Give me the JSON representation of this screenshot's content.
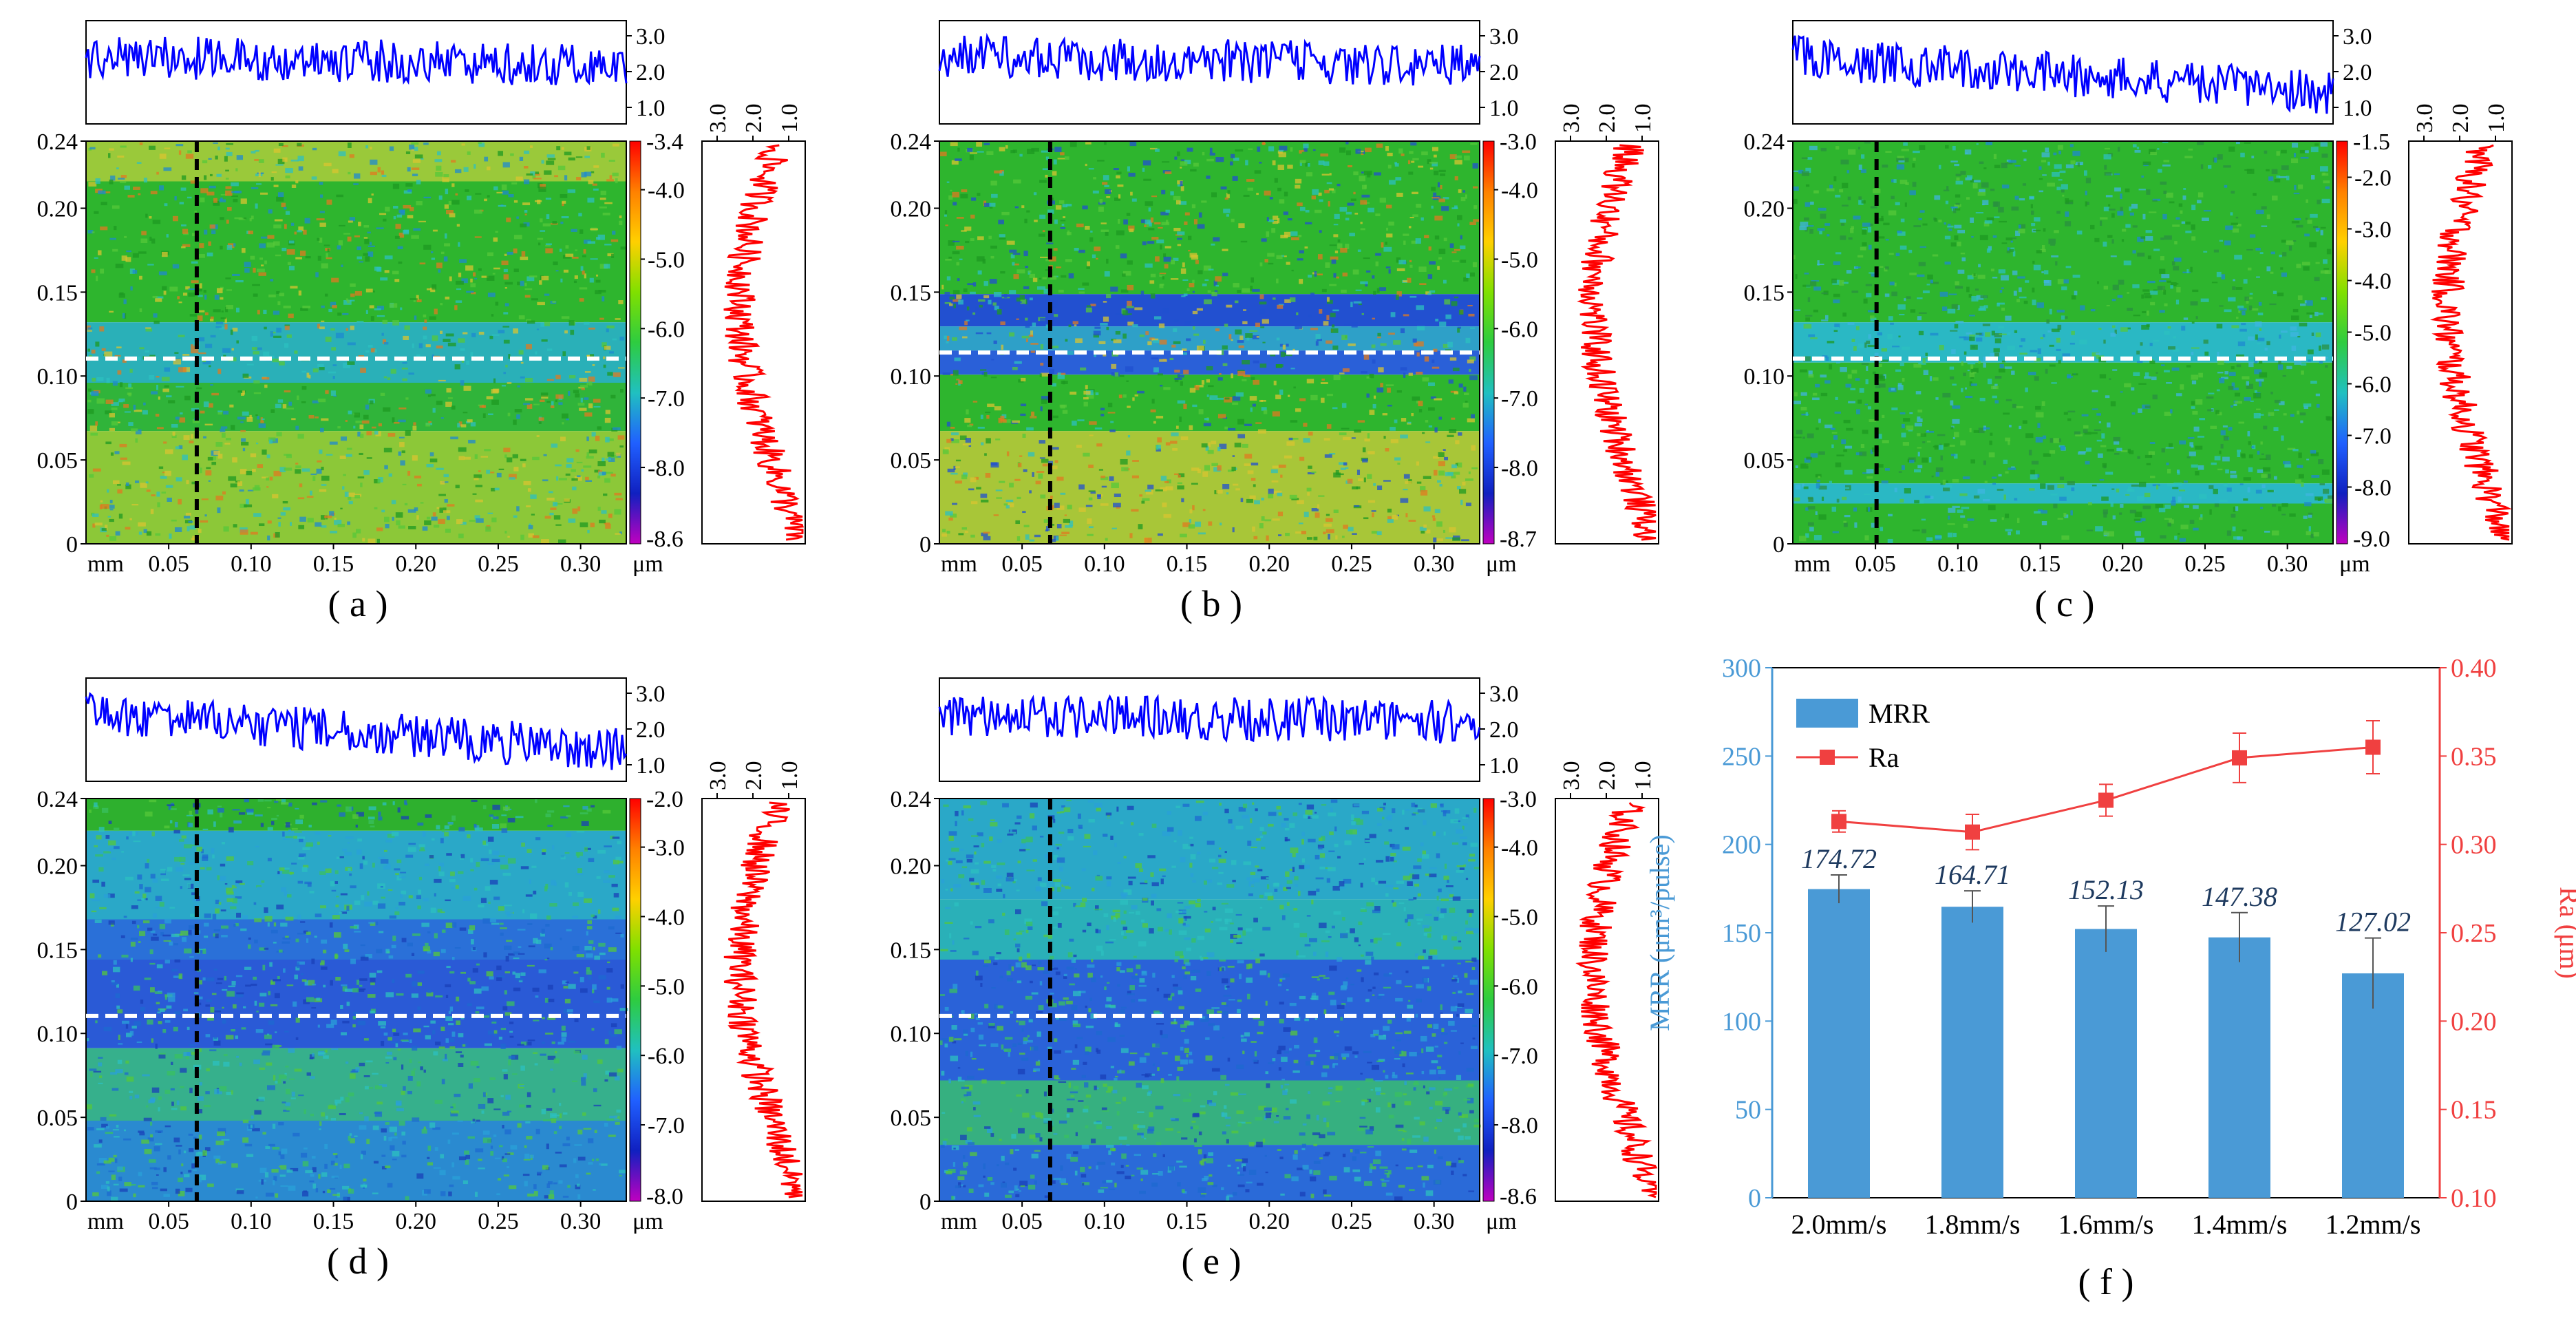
{
  "colors": {
    "top_profile": "#0000ff",
    "side_profile": "#ff0000",
    "bar": "#4a9ad6",
    "ra_line": "#f04040",
    "axis_left_f": "#4a9ad6",
    "axis_right_f": "#f04040",
    "value_label": "#1e3a5f",
    "map_green": "#2eb82e",
    "map_blue": "#2a62d8",
    "map_cyan": "#2cc1c8"
  },
  "colorbar_gradient": [
    "#ff0000",
    "#ff8000",
    "#ffd000",
    "#80e000",
    "#2ecc40",
    "#20c0c0",
    "#2060ff",
    "#1020c0",
    "#c000c0"
  ],
  "panels": [
    {
      "label": "( a )",
      "colorbar_top": "-3.4",
      "colorbar_ticks": [
        "-4.0",
        "-5.0",
        "-6.0",
        "-7.0",
        "-8.0"
      ],
      "colorbar_bottom": "-8.6",
      "map_style": "a"
    },
    {
      "label": "( b )",
      "colorbar_top": "-3.0",
      "colorbar_ticks": [
        "-4.0",
        "-5.0",
        "-6.0",
        "-7.0",
        "-8.0"
      ],
      "colorbar_bottom": "-8.7",
      "map_style": "b"
    },
    {
      "label": "( c )",
      "colorbar_top": "-1.5",
      "colorbar_ticks": [
        "-2.0",
        "-3.0",
        "-4.0",
        "-5.0",
        "-6.0",
        "-7.0",
        "-8.0"
      ],
      "colorbar_bottom": "-9.0",
      "map_style": "c"
    },
    {
      "label": "( d )",
      "colorbar_top": "-2.0",
      "colorbar_ticks": [
        "-3.0",
        "-4.0",
        "-5.0",
        "-6.0",
        "-7.0"
      ],
      "colorbar_bottom": "-8.0",
      "map_style": "d"
    },
    {
      "label": "( e )",
      "colorbar_top": "-3.0",
      "colorbar_ticks": [
        "-4.0",
        "-5.0",
        "-6.0",
        "-7.0",
        "-8.0"
      ],
      "colorbar_bottom": "-8.6",
      "map_style": "e"
    }
  ],
  "map_axes": {
    "y_ticks": [
      "0.24",
      "0.20",
      "0.15",
      "0.10",
      "0.05",
      "0"
    ],
    "x_ticks": [
      "0.05",
      "0.10",
      "0.15",
      "0.20",
      "0.25",
      "0.30"
    ],
    "x_unit": "mm",
    "z_unit": "μm",
    "profile_ticks": [
      "3.0",
      "2.0",
      "1.0"
    ]
  },
  "chart_data": {
    "type": "bar",
    "label": "( f )",
    "categories": [
      "2.0mm/s",
      "1.8mm/s",
      "1.6mm/s",
      "1.4mm/s",
      "1.2mm/s"
    ],
    "series": [
      {
        "name": "MRR",
        "kind": "bar",
        "axis": "left",
        "values": [
          174.72,
          164.71,
          152.13,
          147.38,
          127.02
        ],
        "errors": [
          8,
          9,
          13,
          14,
          20
        ],
        "value_labels": [
          "174.72",
          "164.71",
          "152.13",
          "147.38",
          "127.02"
        ]
      },
      {
        "name": "Ra",
        "kind": "line",
        "axis": "right",
        "values": [
          0.313,
          0.307,
          0.325,
          0.349,
          0.355
        ],
        "errors": [
          0.006,
          0.01,
          0.009,
          0.014,
          0.015
        ]
      }
    ],
    "ylabel_left": "MRR (μm³/pulse)",
    "ylabel_right": "Ra (μm)",
    "ylim_left": [
      0,
      300
    ],
    "yticks_left": [
      "0",
      "50",
      "100",
      "150",
      "200",
      "250",
      "300"
    ],
    "ylim_right": [
      0.1,
      0.4
    ],
    "yticks_right": [
      "0.10",
      "0.15",
      "0.20",
      "0.25",
      "0.30",
      "0.35",
      "0.40"
    ],
    "legend": {
      "placement": "top-left",
      "items": [
        "MRR",
        "Ra"
      ]
    }
  }
}
